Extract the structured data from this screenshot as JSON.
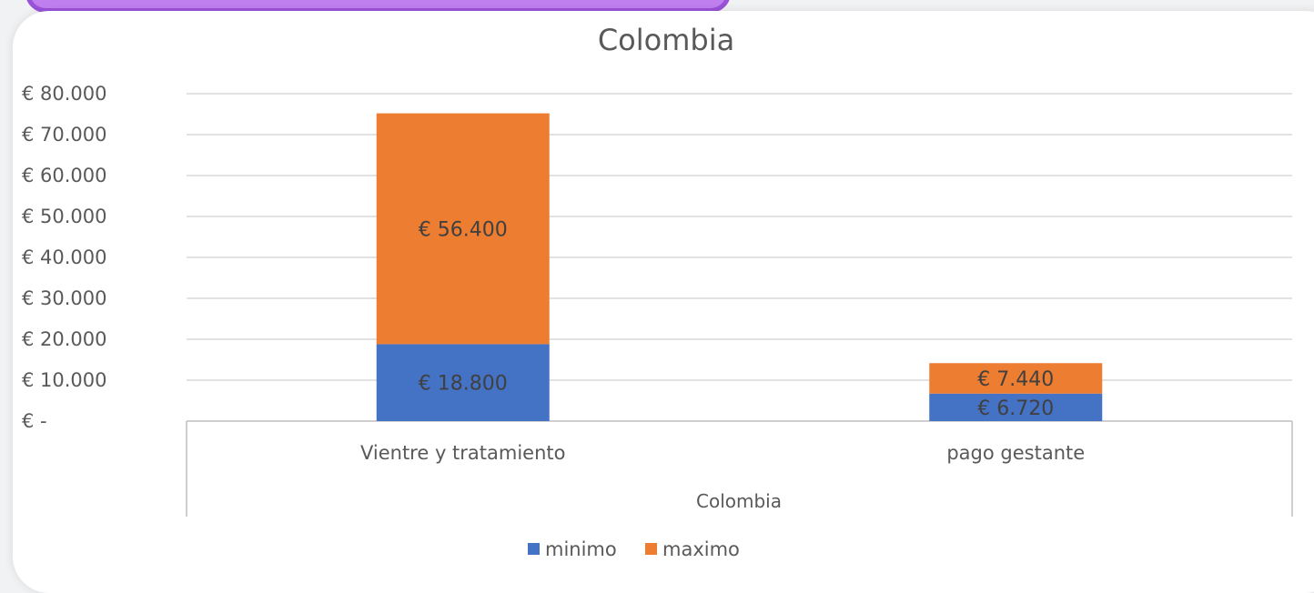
{
  "chart_data": {
    "type": "bar",
    "stacked": true,
    "title": "Colombia",
    "xlabel": "Colombia",
    "ylabel": "",
    "categories": [
      "Vientre y tratamiento",
      "pago gestante"
    ],
    "series": [
      {
        "name": "minimo",
        "color": "#4472c4",
        "values": [
          18800,
          6720
        ],
        "labels": [
          "€ 18.800",
          "€ 6.720"
        ]
      },
      {
        "name": "maximo",
        "color": "#ed7d31",
        "values": [
          56400,
          7440
        ],
        "labels": [
          "€ 56.400",
          "€ 7.440"
        ]
      }
    ],
    "ylim": [
      0,
      80000
    ],
    "yticks": [
      0,
      10000,
      20000,
      30000,
      40000,
      50000,
      60000,
      70000,
      80000
    ],
    "ytick_labels": [
      "€ -",
      "€ 10.000",
      "€ 20.000",
      "€ 30.000",
      "€ 40.000",
      "€ 50.000",
      "€ 60.000",
      "€ 70.000",
      "€ 80.000"
    ],
    "grid": true,
    "legend_position": "bottom"
  }
}
